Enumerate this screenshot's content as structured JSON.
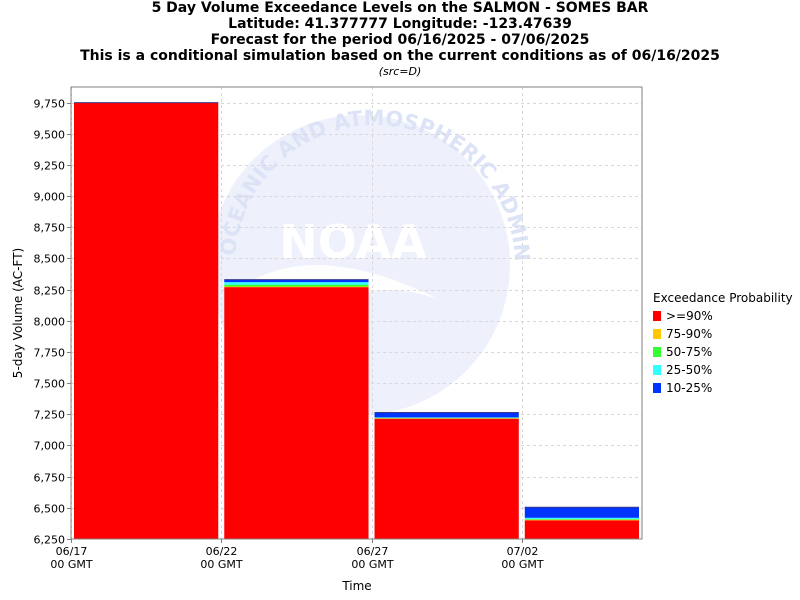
{
  "titles": {
    "line1": "5 Day Volume Exceedance Levels on the SALMON - SOMES BAR",
    "line2": "Latitude: 41.377777 Longitude: -123.47639",
    "line3": "Forecast for the period 06/16/2025 - 07/06/2025",
    "line4": "This is a conditional simulation based on the current conditions as of 06/16/2025",
    "source": "(src=D)"
  },
  "watermark": {
    "logo_text": "NOAA",
    "ring_text": "OCEANIC AND ATMOSPHERIC ADMINISTRATION"
  },
  "legend": {
    "title": "Exceedance Probability",
    "items": [
      {
        "label": ">=90%",
        "color": "#ff0000"
      },
      {
        "label": "75-90%",
        "color": "#ffc800"
      },
      {
        "label": "50-75%",
        "color": "#33ff33"
      },
      {
        "label": "25-50%",
        "color": "#33ffff"
      },
      {
        "label": "10-25%",
        "color": "#0033ff"
      }
    ]
  },
  "chart_data": {
    "type": "bar",
    "stacked": true,
    "title": "5 Day Volume Exceedance Levels on the SALMON - SOMES BAR",
    "xlabel": "Time",
    "ylabel": "5-day Volume (AC-FT)",
    "ylim": [
      6250,
      9875
    ],
    "yticks": [
      6250,
      6500,
      6750,
      7000,
      7250,
      7500,
      7750,
      8000,
      8250,
      8500,
      8750,
      9000,
      9250,
      9500,
      9750
    ],
    "ytick_labels": [
      "6,250",
      "6,500",
      "6,750",
      "7,000",
      "7,250",
      "7,500",
      "7,750",
      "8,000",
      "8,250",
      "8,500",
      "8,750",
      "9,000",
      "9,250",
      "9,500",
      "9,750"
    ],
    "xticks": [
      {
        "date": "2025-06-17",
        "label1": "06/17",
        "label2": "00 GMT"
      },
      {
        "date": "2025-06-22",
        "label1": "06/22",
        "label2": "00 GMT"
      },
      {
        "date": "2025-06-27",
        "label1": "06/27",
        "label2": "00 GMT"
      },
      {
        "date": "2025-07-02",
        "label1": "07/02",
        "label2": "00 GMT"
      }
    ],
    "xlim": [
      "2025-06-17",
      "2025-07-06"
    ],
    "grid": true,
    "legend_position": "right",
    "bars": [
      {
        "start": "2025-06-17",
        "end": "2025-06-22",
        "levels": [
          9750,
          9750,
          9750,
          9750,
          9750
        ]
      },
      {
        "start": "2025-06-22",
        "end": "2025-06-27",
        "levels": [
          8270,
          8275,
          8290,
          8310,
          8330
        ]
      },
      {
        "start": "2025-06-27",
        "end": "2025-07-02",
        "levels": [
          7215,
          7218,
          7222,
          7225,
          7265
        ]
      },
      {
        "start": "2025-07-02",
        "end": "2025-07-06",
        "levels": [
          6400,
          6405,
          6410,
          6420,
          6505
        ]
      }
    ]
  }
}
